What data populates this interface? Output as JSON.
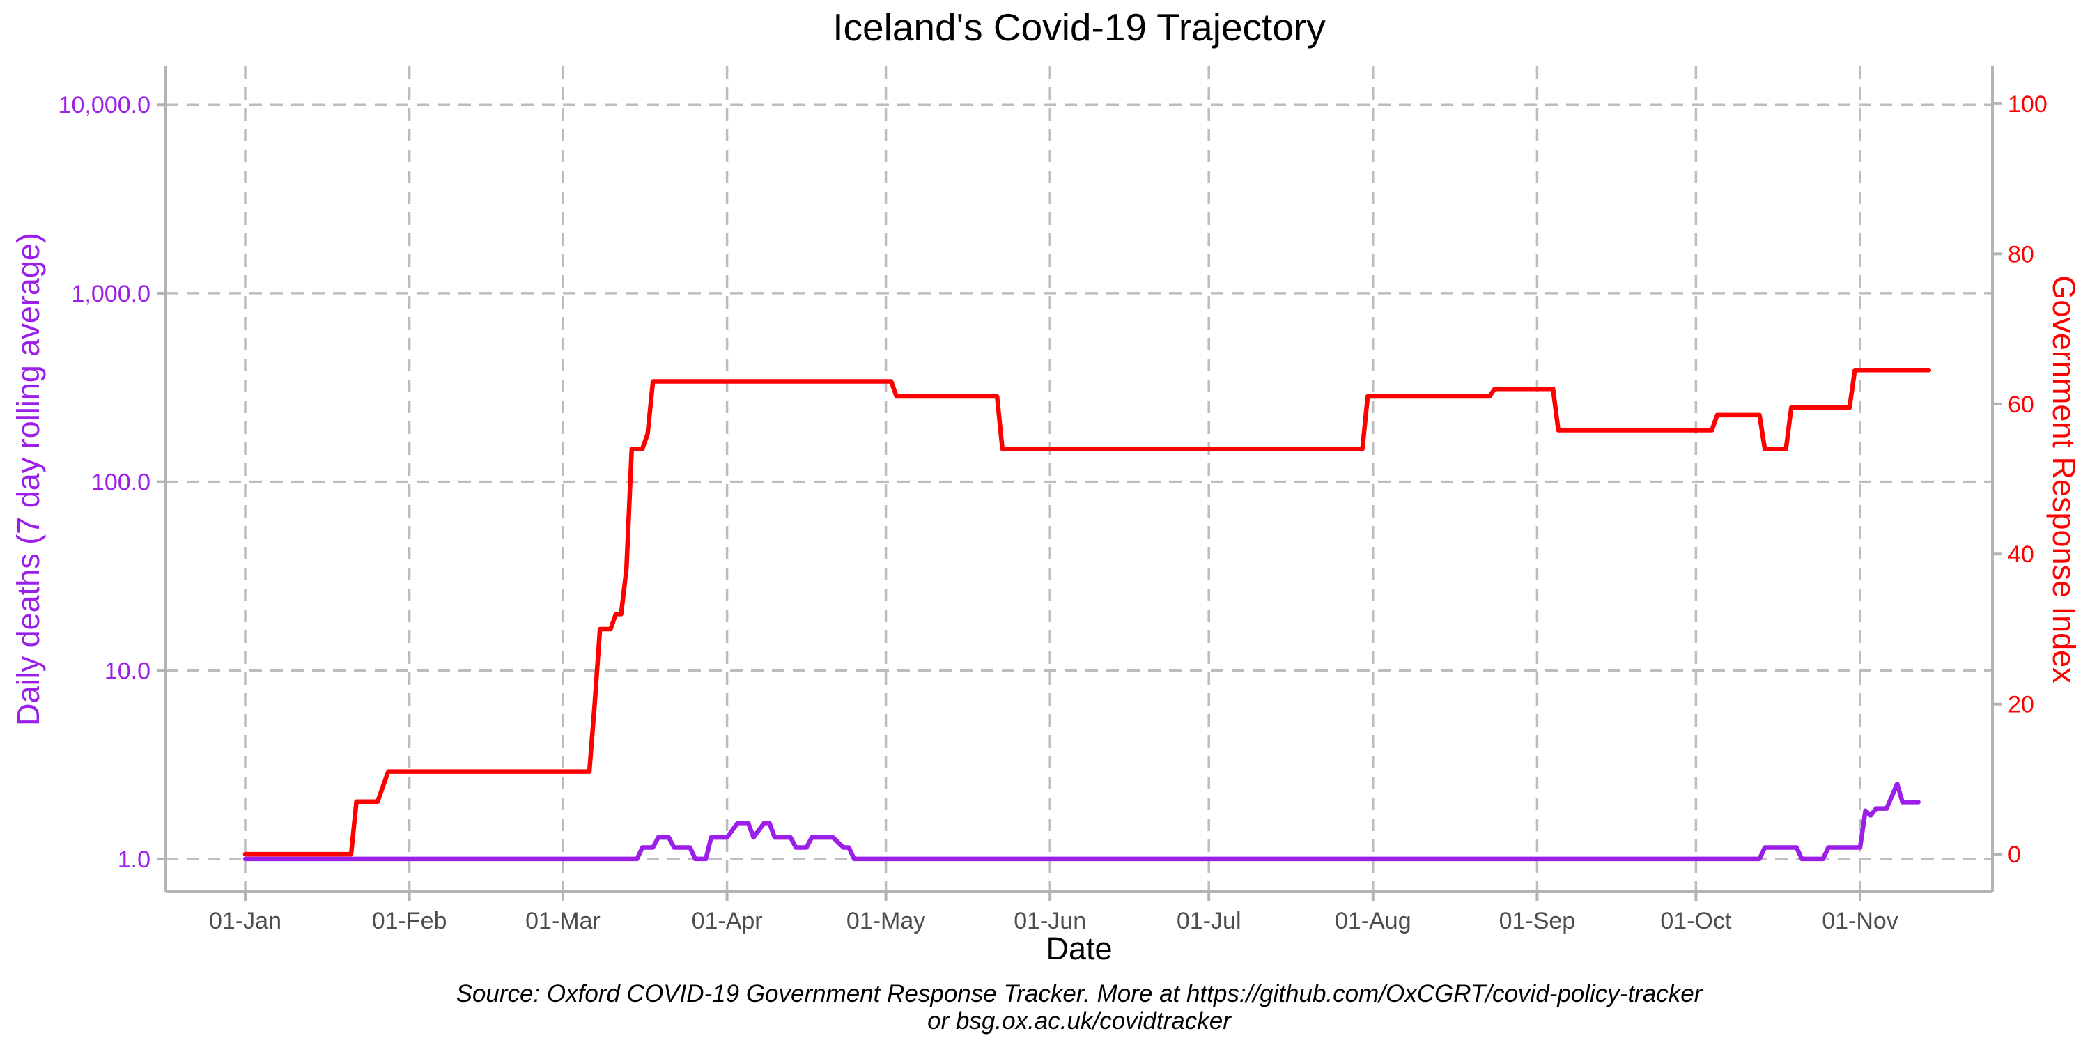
{
  "chart_data": {
    "type": "line",
    "title": "Iceland's Covid-19 Trajectory",
    "xlabel": "Date",
    "ylabel_left": "Daily deaths (7 day rolling average)",
    "ylabel_right": "Government Response Index",
    "caption_line1": "Source: Oxford COVID-19 Government Response Tracker. More at https://github.com/OxCGRT/covid-policy-tracker",
    "caption_line2": "or bsg.ox.ac.uk/covidtracker",
    "x_ticks": [
      "01-Jan",
      "01-Feb",
      "01-Mar",
      "01-Apr",
      "01-May",
      "01-Jun",
      "01-Jul",
      "01-Aug",
      "01-Sep",
      "01-Oct",
      "01-Nov"
    ],
    "x_range": [
      "2019-12-17",
      "2020-11-26"
    ],
    "left_axis": {
      "scale": "log",
      "ticks": [
        "1.0",
        "10.0",
        "100.0",
        "1,000.0",
        "10,000.0"
      ],
      "ylim": [
        0.67,
        16000
      ],
      "color": "#9b1fe8"
    },
    "right_axis": {
      "scale": "linear",
      "ticks": [
        "0",
        "20",
        "40",
        "60",
        "80",
        "100"
      ],
      "ylim": [
        -5,
        105
      ],
      "color": "#ff0000"
    },
    "grid": true,
    "series": [
      {
        "name": "Government Response Index",
        "axis": "right",
        "color": "#ff0000",
        "points": [
          [
            "2020-01-01",
            0
          ],
          [
            "2020-01-21",
            0
          ],
          [
            "2020-01-22",
            7
          ],
          [
            "2020-01-26",
            7
          ],
          [
            "2020-01-28",
            11
          ],
          [
            "2020-03-06",
            11
          ],
          [
            "2020-03-07",
            20
          ],
          [
            "2020-03-08",
            30
          ],
          [
            "2020-03-09",
            30
          ],
          [
            "2020-03-10",
            30
          ],
          [
            "2020-03-11",
            32
          ],
          [
            "2020-03-12",
            32
          ],
          [
            "2020-03-13",
            38
          ],
          [
            "2020-03-14",
            54
          ],
          [
            "2020-03-16",
            54
          ],
          [
            "2020-03-17",
            56
          ],
          [
            "2020-03-18",
            63
          ],
          [
            "2020-05-02",
            63
          ],
          [
            "2020-05-03",
            61
          ],
          [
            "2020-05-22",
            61
          ],
          [
            "2020-05-23",
            54
          ],
          [
            "2020-07-30",
            54
          ],
          [
            "2020-07-31",
            61
          ],
          [
            "2020-08-23",
            61
          ],
          [
            "2020-08-24",
            62
          ],
          [
            "2020-09-04",
            62
          ],
          [
            "2020-09-05",
            56.5
          ],
          [
            "2020-10-04",
            56.5
          ],
          [
            "2020-10-05",
            58.5
          ],
          [
            "2020-10-13",
            58.5
          ],
          [
            "2020-10-14",
            54
          ],
          [
            "2020-10-18",
            54
          ],
          [
            "2020-10-19",
            59.5
          ],
          [
            "2020-10-30",
            59.5
          ],
          [
            "2020-10-31",
            64.5
          ],
          [
            "2020-11-14",
            64.5
          ]
        ]
      },
      {
        "name": "Daily deaths",
        "axis": "left",
        "color": "#9b1fe8",
        "points": [
          [
            "2020-01-01",
            1
          ],
          [
            "2020-03-15",
            1
          ],
          [
            "2020-03-16",
            1.15
          ],
          [
            "2020-03-18",
            1.15
          ],
          [
            "2020-03-19",
            1.3
          ],
          [
            "2020-03-21",
            1.3
          ],
          [
            "2020-03-22",
            1.15
          ],
          [
            "2020-03-25",
            1.15
          ],
          [
            "2020-03-26",
            1
          ],
          [
            "2020-03-28",
            1
          ],
          [
            "2020-03-29",
            1.3
          ],
          [
            "2020-04-01",
            1.3
          ],
          [
            "2020-04-03",
            1.55
          ],
          [
            "2020-04-05",
            1.55
          ],
          [
            "2020-04-06",
            1.3
          ],
          [
            "2020-04-08",
            1.55
          ],
          [
            "2020-04-09",
            1.55
          ],
          [
            "2020-04-10",
            1.3
          ],
          [
            "2020-04-13",
            1.3
          ],
          [
            "2020-04-14",
            1.15
          ],
          [
            "2020-04-16",
            1.15
          ],
          [
            "2020-04-17",
            1.3
          ],
          [
            "2020-04-21",
            1.3
          ],
          [
            "2020-04-23",
            1.15
          ],
          [
            "2020-04-24",
            1.15
          ],
          [
            "2020-04-25",
            1
          ],
          [
            "2020-10-13",
            1
          ],
          [
            "2020-10-14",
            1.15
          ],
          [
            "2020-10-20",
            1.15
          ],
          [
            "2020-10-21",
            1
          ],
          [
            "2020-10-25",
            1
          ],
          [
            "2020-10-26",
            1.15
          ],
          [
            "2020-11-01",
            1.15
          ],
          [
            "2020-11-02",
            1.8
          ],
          [
            "2020-11-03",
            1.7
          ],
          [
            "2020-11-04",
            1.85
          ],
          [
            "2020-11-06",
            1.85
          ],
          [
            "2020-11-08",
            2.5
          ],
          [
            "2020-11-09",
            2
          ],
          [
            "2020-11-12",
            2
          ]
        ]
      }
    ]
  }
}
